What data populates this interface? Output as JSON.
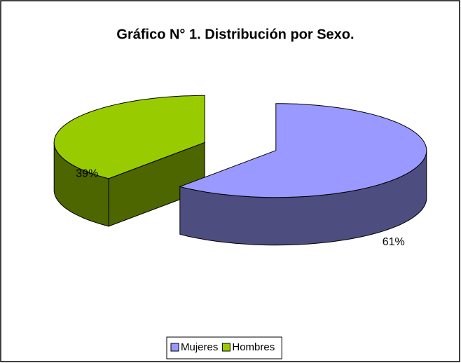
{
  "chart_data": {
    "type": "pie3d",
    "title": "Gráfico N° 1. Distribución por Sexo.",
    "categories": [
      "Mujeres",
      "Hombres"
    ],
    "values": [
      61,
      39
    ],
    "value_labels": [
      "61%",
      "39%"
    ],
    "colors": [
      "#9999ff",
      "#99cc00"
    ],
    "legend": "bottom"
  }
}
